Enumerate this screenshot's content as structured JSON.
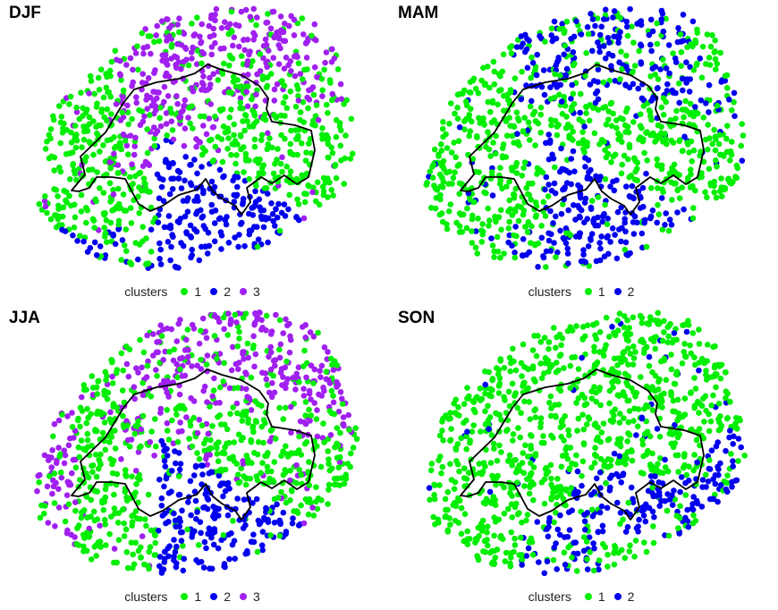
{
  "colors": {
    "1": "#00ee00",
    "2": "#0000ee",
    "3": "#a020f0"
  },
  "legend_title": "clusters",
  "chart_data": [
    {
      "type": "scatter",
      "title": "DJF",
      "legend_title": "clusters",
      "clusters": [
        "1",
        "2",
        "3"
      ]
    },
    {
      "type": "scatter",
      "title": "MAM",
      "legend_title": "clusters",
      "clusters": [
        "1",
        "2"
      ]
    },
    {
      "type": "scatter",
      "title": "JJA",
      "legend_title": "clusters",
      "clusters": [
        "1",
        "2",
        "3"
      ]
    },
    {
      "type": "scatter",
      "title": "SON",
      "legend_title": "clusters",
      "clusters": [
        "1",
        "2"
      ]
    }
  ]
}
